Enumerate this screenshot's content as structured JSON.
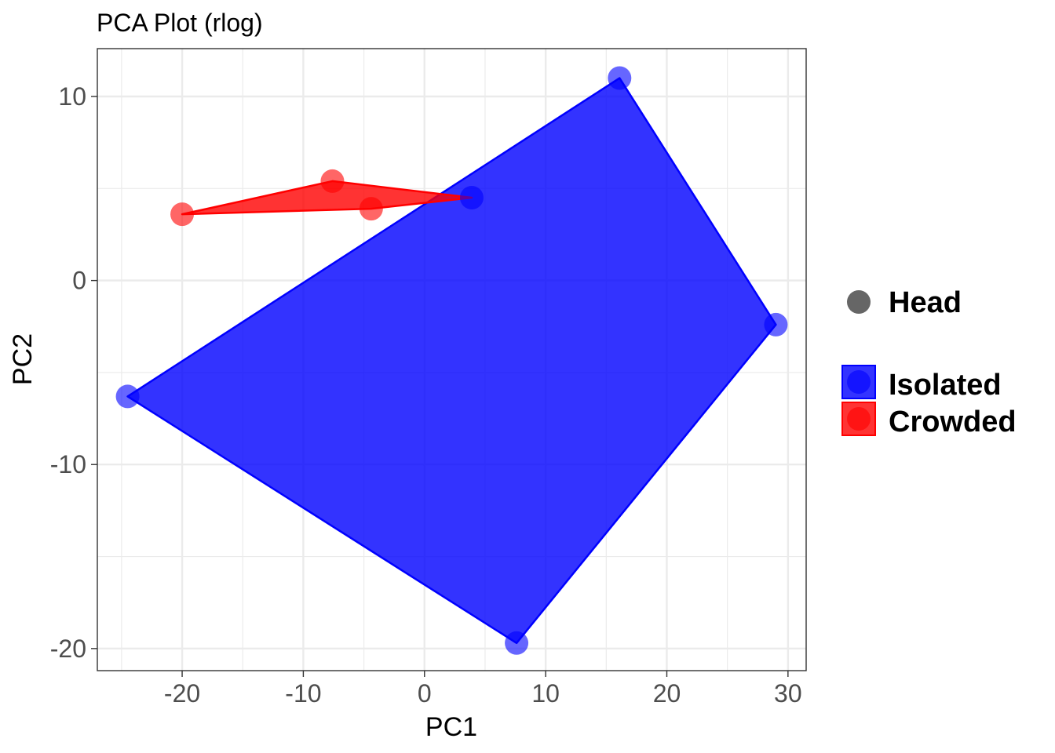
{
  "chart_data": {
    "type": "scatter",
    "title": "PCA Plot (rlog)",
    "xlabel": "PC1",
    "ylabel": "PC2",
    "xlim": [
      -27,
      31.5
    ],
    "ylim": [
      -21.2,
      12.6
    ],
    "x_ticks": [
      -20,
      -10,
      0,
      10,
      20,
      30
    ],
    "y_ticks": [
      -20,
      -10,
      0,
      10
    ],
    "x_tick_labels": [
      "-20",
      "-10",
      "0",
      "10",
      "20",
      "30"
    ],
    "y_tick_labels": [
      "-20",
      "-10",
      "0",
      "10"
    ],
    "grid": true,
    "legend_position": "right",
    "shape_legend": {
      "label": "Head",
      "color": "#666666"
    },
    "series": [
      {
        "name": "Isolated",
        "color": "#0000ff",
        "points": [
          [
            -24.5,
            -6.3
          ],
          [
            7.6,
            -19.7
          ],
          [
            16.1,
            11.0
          ],
          [
            29.0,
            -2.4
          ],
          [
            3.9,
            4.5
          ]
        ],
        "hull": [
          [
            -24.5,
            -6.3
          ],
          [
            7.6,
            -19.7
          ],
          [
            29.0,
            -2.4
          ],
          [
            16.1,
            11.0
          ]
        ]
      },
      {
        "name": "Crowded",
        "color": "#ff0000",
        "points": [
          [
            -20.0,
            3.6
          ],
          [
            -7.6,
            5.4
          ],
          [
            -4.4,
            3.9
          ]
        ],
        "hull": [
          [
            -20.0,
            3.6
          ],
          [
            -4.4,
            3.9
          ],
          [
            3.9,
            4.5
          ],
          [
            -7.6,
            5.4
          ]
        ]
      }
    ]
  }
}
